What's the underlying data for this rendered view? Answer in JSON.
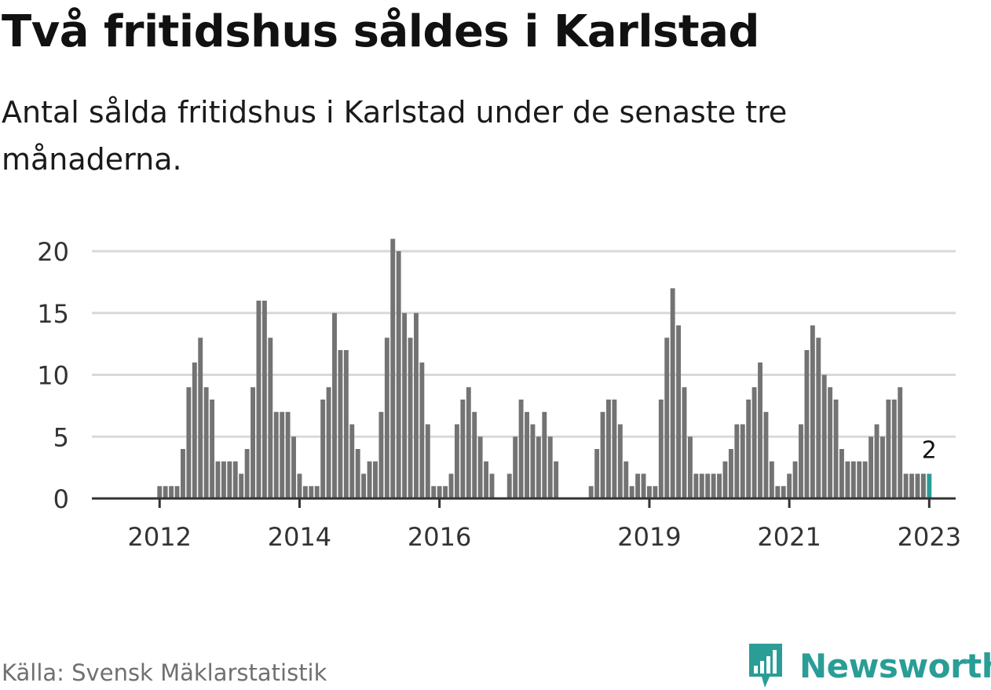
{
  "header": {
    "title": "Två fritidshus såldes i Karlstad",
    "subtitle": "Antal sålda fritidshus i Karlstad under de senaste tre månaderna."
  },
  "footer": {
    "source": "Källa: Svensk Mäklarstatistik",
    "brand": "Newsworthy"
  },
  "colors": {
    "bar": "#737373",
    "highlight": "#2a9d96",
    "grid": "#d9d9d9",
    "axis": "#333333"
  },
  "chart_data": {
    "type": "bar",
    "title": "Två fritidshus såldes i Karlstad",
    "subtitle": "Antal sålda fritidshus i Karlstad under de senaste tre månaderna.",
    "xlabel": "",
    "ylabel": "",
    "ylim": [
      0,
      22
    ],
    "yticks": [
      0,
      5,
      10,
      15,
      20
    ],
    "grid": true,
    "x_start": "2011-01",
    "x_end": "2023-01",
    "x_tick_labels": [
      "2012",
      "2014",
      "2016",
      "2019",
      "2021",
      "2023"
    ],
    "highlight_last": true,
    "last_value_label": "2",
    "series": [
      {
        "values": [
          null,
          null,
          null,
          null,
          null,
          null,
          null,
          null,
          null,
          null,
          null,
          null,
          1,
          1,
          1,
          1,
          4,
          9,
          11,
          13,
          9,
          8,
          3,
          3,
          3,
          3,
          2,
          4,
          9,
          16,
          16,
          13,
          7,
          7,
          7,
          5,
          2,
          1,
          1,
          1,
          8,
          9,
          15,
          12,
          12,
          6,
          4,
          2,
          3,
          3,
          7,
          13,
          21,
          20,
          15,
          13,
          15,
          11,
          6,
          1,
          1,
          1,
          2,
          6,
          8,
          9,
          7,
          5,
          3,
          2,
          null,
          null,
          2,
          5,
          8,
          7,
          6,
          5,
          7,
          5,
          3,
          null,
          null,
          null,
          null,
          null,
          1,
          4,
          7,
          8,
          8,
          6,
          3,
          1,
          2,
          2,
          1,
          1,
          8,
          13,
          17,
          14,
          9,
          5,
          2,
          2,
          2,
          2,
          2,
          3,
          4,
          6,
          6,
          8,
          9,
          11,
          7,
          3,
          1,
          1,
          2,
          3,
          6,
          12,
          14,
          13,
          10,
          9,
          8,
          4,
          3,
          3,
          3,
          3,
          5,
          6,
          5,
          8,
          8,
          9,
          2,
          2,
          2,
          2,
          2
        ]
      }
    ]
  }
}
